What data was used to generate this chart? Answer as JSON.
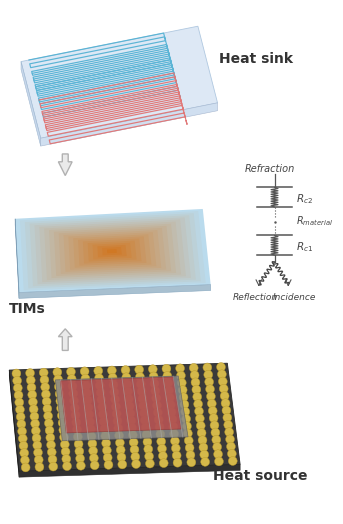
{
  "bg_color": "#ffffff",
  "heat_sink_label": "Heat sink",
  "tims_label": "TIMs",
  "heat_source_label": "Heat source",
  "refraction_label": "Refraction",
  "reflection_label": "Reflection",
  "incidence_label": "Incidence",
  "blue_channel_color": "#5ab4d5",
  "red_channel_color": "#e07878",
  "heat_sink_top_color": "#dde8f5",
  "heat_sink_side_color": "#c5d5e8",
  "tims_edge_color": "#b8d8e8",
  "chip_gold_color": "#d4b84a",
  "chip_dark_color": "#3a3a3a",
  "chip_red_color": "#c04040",
  "chip_gray_color": "#707070",
  "arrow_fill": "#e8e8e8",
  "arrow_edge": "#aaaaaa",
  "resistor_color": "#555555",
  "label_color": "#333333",
  "font_size_main": 10,
  "font_size_diagram": 7
}
